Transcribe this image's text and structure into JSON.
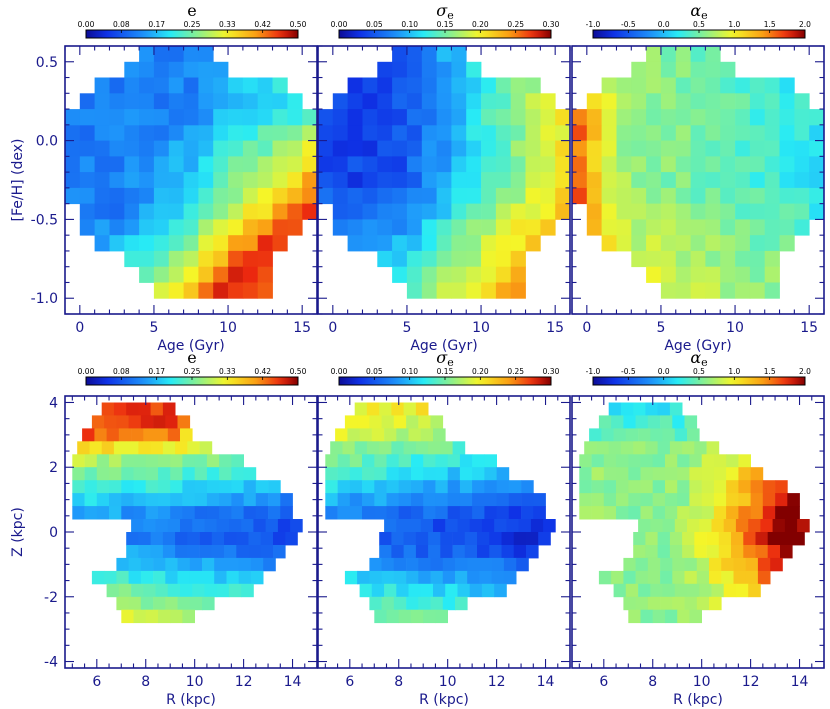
{
  "chart_data": [
    {
      "type": "heatmap",
      "panel": "top-left",
      "x_quantity": "age",
      "y_quantity": "feh",
      "variable": "e",
      "title": "e",
      "colorbar_ticks": [
        "0.00",
        "0.08",
        "0.17",
        "0.25",
        "0.33",
        "0.42",
        "0.50"
      ],
      "colorbar_range": [
        0.0,
        0.5
      ],
      "xlabel": "Age (Gyr)",
      "ylabel": "[Fe/H] (dex)",
      "xlim": [
        -1,
        16
      ],
      "ylim": [
        -1.1,
        0.6
      ],
      "xticks": [
        "0",
        "5",
        "10",
        "15"
      ],
      "yticks": [
        "-1.0",
        "-0.5",
        "0.0",
        "0.5"
      ]
    },
    {
      "type": "heatmap",
      "panel": "top-middle",
      "x_quantity": "age",
      "y_quantity": "feh",
      "variable": "sigma_e",
      "title_symbol": "σ",
      "title_subscript": "e",
      "colorbar_ticks": [
        "0.00",
        "0.05",
        "0.10",
        "0.15",
        "0.20",
        "0.25",
        "0.30"
      ],
      "colorbar_range": [
        0.0,
        0.3
      ],
      "xlabel": "Age (Gyr)",
      "ylabel": "",
      "xlim": [
        -1,
        16
      ],
      "ylim": [
        -1.1,
        0.6
      ],
      "xticks": [
        "0",
        "5",
        "10",
        "15"
      ],
      "yticks": []
    },
    {
      "type": "heatmap",
      "panel": "top-right",
      "x_quantity": "age",
      "y_quantity": "feh",
      "variable": "alpha_e",
      "title_symbol": "α",
      "title_subscript": "e",
      "colorbar_ticks": [
        "-1.0",
        "-0.5",
        "0.0",
        "0.5",
        "1.0",
        "1.5",
        "2.0"
      ],
      "colorbar_range": [
        -1.0,
        2.0
      ],
      "xlabel": "Age (Gyr)",
      "ylabel": "",
      "xlim": [
        -1,
        16
      ],
      "ylim": [
        -1.1,
        0.6
      ],
      "xticks": [
        "0",
        "5",
        "10",
        "15"
      ],
      "yticks": []
    },
    {
      "type": "heatmap",
      "panel": "bottom-left",
      "x_quantity": "R",
      "y_quantity": "Z",
      "variable": "e",
      "title": "e",
      "colorbar_ticks": [
        "0.00",
        "0.08",
        "0.17",
        "0.25",
        "0.33",
        "0.42",
        "0.50"
      ],
      "colorbar_range": [
        0.0,
        0.5
      ],
      "xlabel": "R (kpc)",
      "ylabel": "Z (kpc)",
      "xlim": [
        4.7,
        15.0
      ],
      "ylim": [
        -4.2,
        4.2
      ],
      "xticks": [
        "6",
        "8",
        "10",
        "12",
        "14"
      ],
      "yticks": [
        "-4",
        "-2",
        "0",
        "2",
        "4"
      ]
    },
    {
      "type": "heatmap",
      "panel": "bottom-middle",
      "x_quantity": "R",
      "y_quantity": "Z",
      "variable": "sigma_e",
      "title_symbol": "σ",
      "title_subscript": "e",
      "colorbar_ticks": [
        "0.00",
        "0.05",
        "0.10",
        "0.15",
        "0.20",
        "0.25",
        "0.30"
      ],
      "colorbar_range": [
        0.0,
        0.3
      ],
      "xlabel": "R (kpc)",
      "ylabel": "",
      "xlim": [
        4.7,
        15.0
      ],
      "ylim": [
        -4.2,
        4.2
      ],
      "xticks": [
        "6",
        "8",
        "10",
        "12",
        "14"
      ],
      "yticks": []
    },
    {
      "type": "heatmap",
      "panel": "bottom-right",
      "x_quantity": "R",
      "y_quantity": "Z",
      "variable": "alpha_e",
      "title_symbol": "α",
      "title_subscript": "e",
      "colorbar_ticks": [
        "-1.0",
        "-0.5",
        "0.0",
        "0.5",
        "1.0",
        "1.5",
        "2.0"
      ],
      "colorbar_range": [
        -1.0,
        2.0
      ],
      "xlabel": "R (kpc)",
      "ylabel": "",
      "xlim": [
        4.7,
        15.0
      ],
      "ylim": [
        -4.2,
        4.2
      ],
      "xticks": [
        "6",
        "8",
        "10",
        "12",
        "14"
      ],
      "yticks": []
    }
  ]
}
